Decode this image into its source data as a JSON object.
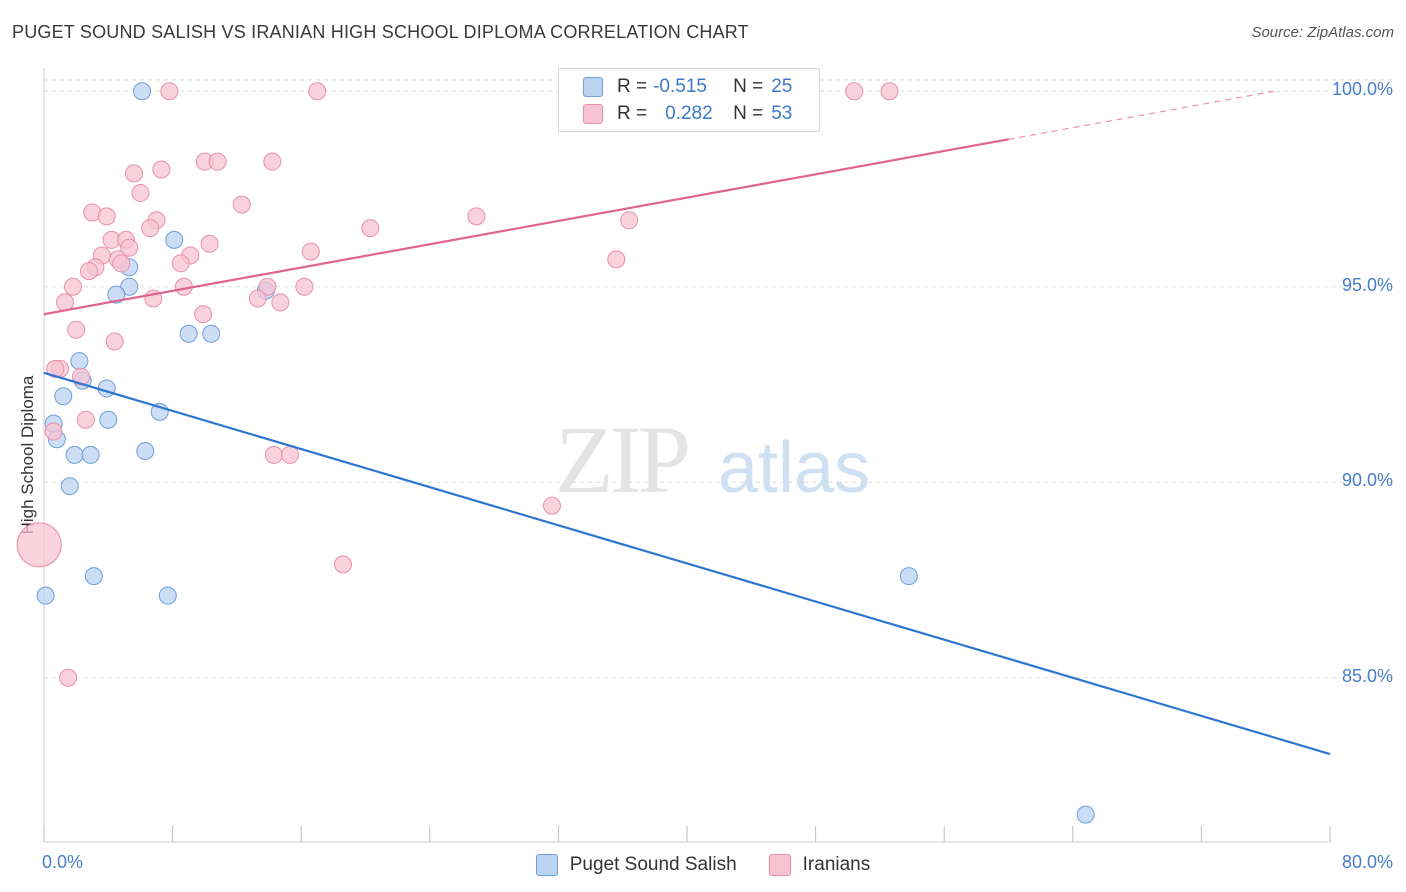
{
  "title": "PUGET SOUND SALISH VS IRANIAN HIGH SCHOOL DIPLOMA CORRELATION CHART",
  "source": "Source: ZipAtlas.com",
  "watermark": {
    "zip": "ZIP",
    "atlas": "atlas"
  },
  "legend": {
    "rows": [
      {
        "r_label": "R =",
        "r_value": "-0.515",
        "n_label": "N =",
        "n_value": "25"
      },
      {
        "r_label": "R =",
        "r_value": "0.282",
        "n_label": "N =",
        "n_value": "53"
      }
    ]
  },
  "bottom_legend": [
    "Puget Sound Salish",
    "Iranians"
  ],
  "colors": {
    "blue_fill": "#b9d3f1",
    "blue_stroke": "#6f9fd9",
    "blue_line": "#2f75d2",
    "pink_fill": "#f7c3d3",
    "pink_stroke": "#e890ab",
    "pink_line": "#e0648e",
    "grid": "#dcdcdc",
    "tick_text": "#4a7cc7"
  },
  "chart_data": {
    "type": "scatter",
    "title": "PUGET SOUND SALISH VS IRANIAN HIGH SCHOOL DIPLOMA CORRELATION CHART",
    "xlabel": "",
    "ylabel": "High School Diploma",
    "xlim": [
      0,
      80
    ],
    "ylim": [
      80.8,
      100.8
    ],
    "x_tick_labels": [
      "0.0%",
      "80.0%"
    ],
    "y_ticks": [
      85,
      90,
      95,
      100
    ],
    "y_tick_labels": [
      "85.0%",
      "90.0%",
      "95.0%",
      "100.0%"
    ],
    "grid": true,
    "series": [
      {
        "name": "Puget Sound Salish",
        "r": -0.515,
        "n": 25,
        "trend": {
          "x": [
            0,
            80
          ],
          "y": [
            92.8,
            83.05
          ],
          "dashed_from": null
        },
        "points": [
          {
            "x": 6.1,
            "y": 100.0
          },
          {
            "x": 8.1,
            "y": 96.2
          },
          {
            "x": 5.3,
            "y": 95.5
          },
          {
            "x": 5.3,
            "y": 95.0
          },
          {
            "x": 4.5,
            "y": 94.8
          },
          {
            "x": 13.8,
            "y": 94.9
          },
          {
            "x": 9.0,
            "y": 93.8
          },
          {
            "x": 10.4,
            "y": 93.8
          },
          {
            "x": 2.2,
            "y": 93.1
          },
          {
            "x": 2.4,
            "y": 92.6
          },
          {
            "x": 3.9,
            "y": 92.4
          },
          {
            "x": 1.2,
            "y": 92.2
          },
          {
            "x": 7.2,
            "y": 91.8
          },
          {
            "x": 4.0,
            "y": 91.6
          },
          {
            "x": 0.6,
            "y": 91.5
          },
          {
            "x": 0.8,
            "y": 91.1
          },
          {
            "x": 1.9,
            "y": 90.7
          },
          {
            "x": 2.9,
            "y": 90.7
          },
          {
            "x": 6.3,
            "y": 90.8
          },
          {
            "x": 1.6,
            "y": 89.9
          },
          {
            "x": 3.1,
            "y": 87.6
          },
          {
            "x": 0.1,
            "y": 87.1
          },
          {
            "x": 7.7,
            "y": 87.1
          },
          {
            "x": 53.8,
            "y": 87.6
          },
          {
            "x": 64.8,
            "y": 81.5
          }
        ]
      },
      {
        "name": "Iranians",
        "r": 0.282,
        "n": 53,
        "trend": {
          "x": [
            0,
            76.5
          ],
          "y": [
            94.3,
            100.0
          ],
          "dashed_from": 60
        },
        "points": [
          {
            "x": 7.8,
            "y": 100.0
          },
          {
            "x": 17.0,
            "y": 100.0
          },
          {
            "x": 50.4,
            "y": 100.0
          },
          {
            "x": 52.6,
            "y": 100.0
          },
          {
            "x": 10.0,
            "y": 98.2
          },
          {
            "x": 10.8,
            "y": 98.2
          },
          {
            "x": 14.2,
            "y": 98.2
          },
          {
            "x": 5.6,
            "y": 97.9
          },
          {
            "x": 7.3,
            "y": 98.0
          },
          {
            "x": 6.0,
            "y": 97.4
          },
          {
            "x": 12.3,
            "y": 97.1
          },
          {
            "x": 3.0,
            "y": 96.9
          },
          {
            "x": 3.9,
            "y": 96.8
          },
          {
            "x": 7.0,
            "y": 96.7
          },
          {
            "x": 26.9,
            "y": 96.8
          },
          {
            "x": 36.4,
            "y": 96.7
          },
          {
            "x": 20.3,
            "y": 96.5
          },
          {
            "x": 6.6,
            "y": 96.5
          },
          {
            "x": 4.2,
            "y": 96.2
          },
          {
            "x": 5.1,
            "y": 96.2
          },
          {
            "x": 10.3,
            "y": 96.1
          },
          {
            "x": 5.3,
            "y": 96.0
          },
          {
            "x": 16.6,
            "y": 95.9
          },
          {
            "x": 9.1,
            "y": 95.8
          },
          {
            "x": 3.6,
            "y": 95.8
          },
          {
            "x": 4.6,
            "y": 95.7
          },
          {
            "x": 8.5,
            "y": 95.6
          },
          {
            "x": 35.6,
            "y": 95.7
          },
          {
            "x": 3.2,
            "y": 95.5
          },
          {
            "x": 2.8,
            "y": 95.4
          },
          {
            "x": 4.8,
            "y": 95.6
          },
          {
            "x": 1.8,
            "y": 95.0
          },
          {
            "x": 8.7,
            "y": 95.0
          },
          {
            "x": 16.2,
            "y": 95.0
          },
          {
            "x": 13.9,
            "y": 95.0
          },
          {
            "x": 6.8,
            "y": 94.7
          },
          {
            "x": 13.3,
            "y": 94.7
          },
          {
            "x": 14.7,
            "y": 94.6
          },
          {
            "x": 1.3,
            "y": 94.6
          },
          {
            "x": 9.9,
            "y": 94.3
          },
          {
            "x": 2.0,
            "y": 93.9
          },
          {
            "x": 4.4,
            "y": 93.6
          },
          {
            "x": 1.0,
            "y": 92.9
          },
          {
            "x": 0.7,
            "y": 92.9
          },
          {
            "x": 2.3,
            "y": 92.7
          },
          {
            "x": 2.6,
            "y": 91.6
          },
          {
            "x": 0.6,
            "y": 91.3
          },
          {
            "x": 14.3,
            "y": 90.7
          },
          {
            "x": 15.3,
            "y": 90.7
          },
          {
            "x": 31.6,
            "y": 89.4
          },
          {
            "x": 18.6,
            "y": 87.9
          },
          {
            "x": 1.5,
            "y": 85.0
          },
          {
            "x": -0.3,
            "y": 88.4,
            "large": true
          }
        ]
      }
    ]
  }
}
